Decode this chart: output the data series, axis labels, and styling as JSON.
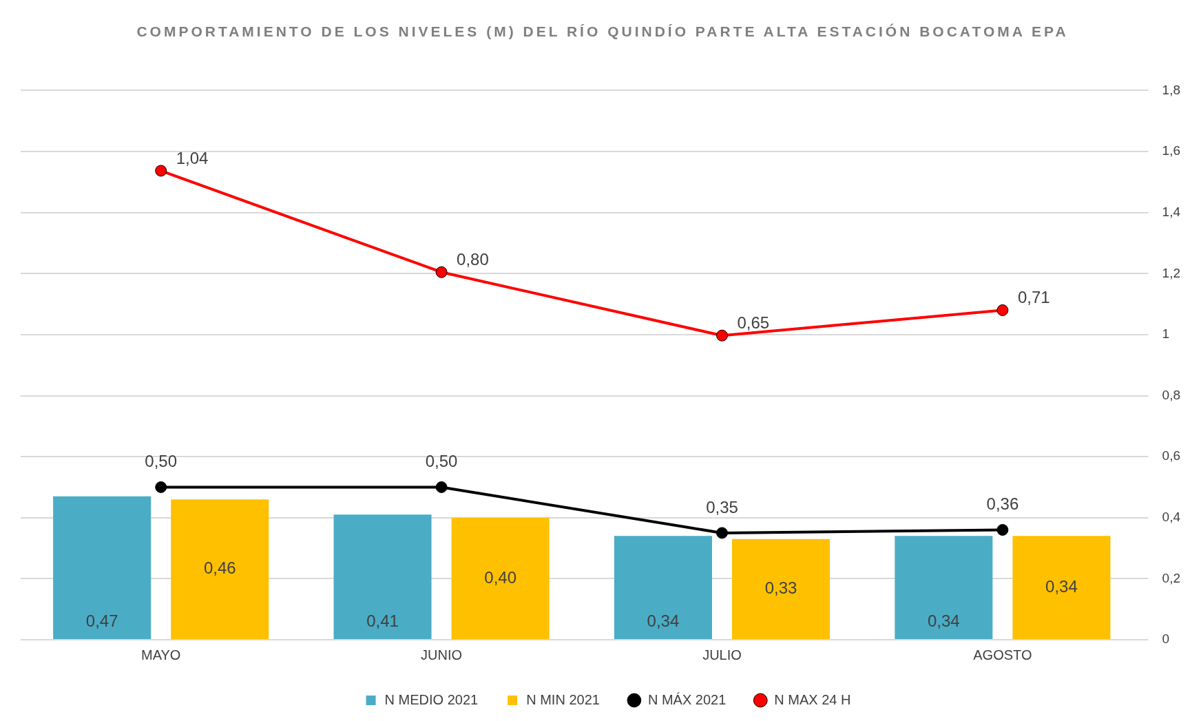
{
  "chart_data": {
    "type": "bar",
    "title": "COMPORTAMIENTO DE LOS NIVELES (M) DEL RÍO QUINDÍO PARTE ALTA ESTACIÓN  BOCATOMA EPA",
    "categories": [
      "MAYO",
      "JUNIO",
      "JULIO",
      "AGOSTO"
    ],
    "series": [
      {
        "name": "N MEDIO 2021",
        "color": "#4bacc6",
        "values": [
          0.47,
          0.41,
          0.34,
          0.34
        ],
        "value_labels": [
          "0,47",
          "0,41",
          "0,34",
          "0,34"
        ]
      },
      {
        "name": "N MIN 2021",
        "color": "#ffc000",
        "values": [
          0.46,
          0.4,
          0.33,
          0.34
        ],
        "value_labels": [
          "0,46",
          "0,40",
          "0,33",
          "0,34"
        ]
      },
      {
        "name": "N MÁX 2021",
        "type": "line",
        "color": "#000000",
        "values": [
          0.5,
          0.5,
          0.35,
          0.36
        ],
        "value_labels": [
          "0,50",
          "0,50",
          "0,35",
          "0,36"
        ]
      },
      {
        "name": "N MAX 24 H",
        "type": "line",
        "axis": "y2",
        "color": "#ff0000",
        "values": [
          1.04,
          0.8,
          0.65,
          0.71
        ],
        "value_labels": [
          "1,04",
          "0,80",
          "0,65",
          "0,71"
        ]
      }
    ],
    "ylim": [
      0,
      1.8
    ],
    "yticks": [
      0,
      {
        "value": 0.2,
        "label": "0,2"
      },
      {
        "value": 0.4,
        "label": "0,4"
      },
      {
        "value": 0.6,
        "label": "0,6"
      },
      {
        "value": 0.8,
        "label": "0,8"
      },
      1,
      {
        "value": 1.2,
        "label": "1,2"
      },
      {
        "value": 1.4,
        "label": "1,4"
      },
      {
        "value": 1.6,
        "label": "1,6"
      },
      {
        "value": 1.8,
        "label": "1,8"
      }
    ],
    "y2lim": [
      -0.07,
      1.23
    ],
    "grid": "y",
    "legend": "bottom",
    "marker": "circle",
    "line_style": "solid"
  }
}
